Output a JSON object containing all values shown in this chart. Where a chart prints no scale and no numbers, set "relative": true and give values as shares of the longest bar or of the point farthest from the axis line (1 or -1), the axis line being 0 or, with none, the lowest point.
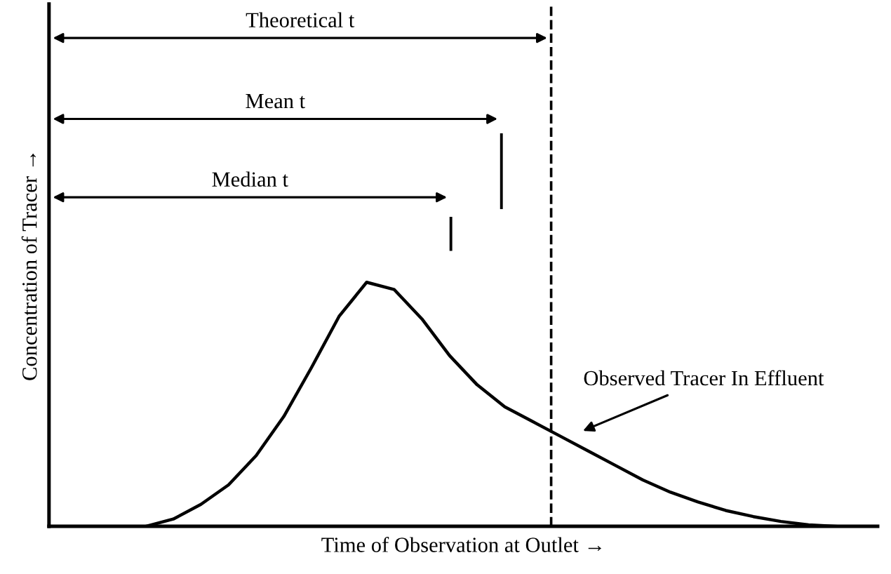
{
  "chart_data": {
    "type": "line",
    "relative": true,
    "xlabel": "Time of Observation at Outlet →",
    "ylabel": "Concentration of Tracer →",
    "categories": [
      null,
      null,
      null,
      null,
      null,
      null,
      null,
      null,
      null,
      null,
      null,
      null,
      null,
      null,
      null,
      null,
      null,
      null,
      null,
      null,
      null,
      null,
      null,
      null,
      null,
      null,
      null,
      null,
      null,
      null
    ],
    "series": [
      {
        "color": "#000000",
        "values": [
          null,
          null,
          null,
          0,
          0.03,
          0.09,
          0.17,
          0.29,
          0.45,
          0.65,
          0.86,
          1.0,
          0.97,
          0.85,
          0.7,
          0.58,
          0.49,
          0.43,
          0.37,
          0.31,
          0.25,
          0.19,
          0.14,
          0.1,
          0.065,
          0.04,
          0.02,
          0.006,
          0,
          null
        ]
      }
    ],
    "annotations": [
      "Theoretical t",
      "Mean t",
      "Median t",
      "Observed Tracer In Effluent"
    ],
    "grid": false,
    "legend": false
  }
}
